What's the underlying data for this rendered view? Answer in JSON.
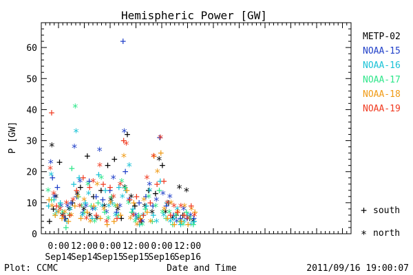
{
  "chart_data": {
    "type": "scatter",
    "title": "Hemispheric Power [GW]",
    "ylabel": "P [GW]",
    "xlabel": "Date and Time",
    "ylim": [
      0,
      68
    ],
    "yticks": [
      0,
      10,
      20,
      30,
      40,
      50,
      60
    ],
    "xlim": [
      -8,
      136
    ],
    "xunit": "hours after 2011-09-14 00:00",
    "xticks": [
      {
        "x": 0,
        "time": "0:00",
        "date": "Sep14"
      },
      {
        "x": 12,
        "time": "12:00",
        "date": "Sep14"
      },
      {
        "x": 24,
        "time": "0:00",
        "date": "Sep15"
      },
      {
        "x": 36,
        "time": "12:00",
        "date": "Sep15"
      },
      {
        "x": 48,
        "time": "0:00",
        "date": "Sep16"
      },
      {
        "x": 60,
        "time": "12:00",
        "date": "Sep16"
      }
    ],
    "series": [
      {
        "name": "METP-02",
        "color": "#000000",
        "points": [
          [
            -4.2,
            4
          ],
          [
            -3.1,
            28.5
          ],
          [
            -2.4,
            8
          ],
          [
            -1.2,
            12
          ],
          [
            0.5,
            23
          ],
          [
            1.8,
            6
          ],
          [
            3.2,
            5
          ],
          [
            4.9,
            8
          ],
          [
            6.5,
            10
          ],
          [
            8.7,
            13
          ],
          [
            10.2,
            15
          ],
          [
            11.8,
            8
          ],
          [
            13.4,
            25
          ],
          [
            14.6,
            6
          ],
          [
            16.3,
            12
          ],
          [
            17.9,
            5
          ],
          [
            19.8,
            14
          ],
          [
            21.3,
            9
          ],
          [
            22.9,
            22
          ],
          [
            24.4,
            11
          ],
          [
            26.0,
            24
          ],
          [
            27.6,
            8
          ],
          [
            29.2,
            5
          ],
          [
            30.8,
            15
          ],
          [
            32.0,
            32
          ],
          [
            33.8,
            12
          ],
          [
            35.5,
            9
          ],
          [
            37.2,
            5
          ],
          [
            38.5,
            4
          ],
          [
            40.1,
            9
          ],
          [
            41.9,
            14
          ],
          [
            43.5,
            7
          ],
          [
            45.1,
            13
          ],
          [
            46.8,
            24
          ],
          [
            48.3,
            22
          ],
          [
            49.7,
            7
          ],
          [
            51.2,
            10
          ],
          [
            53.0,
            5
          ],
          [
            54.7,
            6
          ],
          [
            56.2,
            15
          ],
          [
            57.8,
            6
          ],
          [
            59.5,
            14
          ],
          [
            61.0,
            5
          ],
          [
            62.6,
            4
          ]
        ]
      },
      {
        "name": "NOAA-15",
        "color": "#1f3fc8",
        "points": [
          [
            -3.6,
            23
          ],
          [
            -2.8,
            18
          ],
          [
            -1.9,
            12
          ],
          [
            -0.5,
            15
          ],
          [
            1.2,
            9
          ],
          [
            2.7,
            5
          ],
          [
            4.2,
            9
          ],
          [
            5.8,
            10
          ],
          [
            7.4,
            28
          ],
          [
            8.5,
            12
          ],
          [
            10.0,
            17
          ],
          [
            11.4,
            7
          ],
          [
            12.8,
            9
          ],
          [
            14.3,
            17
          ],
          [
            15.9,
            8
          ],
          [
            17.5,
            12
          ],
          [
            19.1,
            27
          ],
          [
            20.6,
            11
          ],
          [
            22.3,
            7
          ],
          [
            23.9,
            14
          ],
          [
            25.5,
            18
          ],
          [
            27.0,
            7
          ],
          [
            28.5,
            9
          ],
          [
            30.0,
            62
          ],
          [
            30.6,
            33
          ],
          [
            31.1,
            20
          ],
          [
            32.8,
            11
          ],
          [
            34.2,
            7
          ],
          [
            35.9,
            6
          ],
          [
            37.5,
            10
          ],
          [
            39.0,
            4
          ],
          [
            40.6,
            12
          ],
          [
            42.3,
            16
          ],
          [
            43.9,
            9
          ],
          [
            45.5,
            11
          ],
          [
            47.1,
            31
          ],
          [
            48.6,
            13
          ],
          [
            50.1,
            9
          ],
          [
            51.8,
            12
          ],
          [
            53.4,
            6
          ],
          [
            55.0,
            4
          ],
          [
            56.7,
            5
          ],
          [
            58.2,
            8
          ],
          [
            59.8,
            5
          ],
          [
            61.4,
            6
          ],
          [
            62.9,
            5
          ]
        ]
      },
      {
        "name": "NOAA-16",
        "color": "#19c2d6",
        "points": [
          [
            -4.6,
            9
          ],
          [
            -3.4,
            19
          ],
          [
            -2.1,
            11
          ],
          [
            -0.8,
            7
          ],
          [
            0.9,
            10
          ],
          [
            2.4,
            6
          ],
          [
            3.9,
            4
          ],
          [
            5.5,
            8
          ],
          [
            7.1,
            16
          ],
          [
            8.2,
            33
          ],
          [
            9.6,
            18
          ],
          [
            11.0,
            6
          ],
          [
            12.5,
            10
          ],
          [
            14.0,
            13
          ],
          [
            15.6,
            5
          ],
          [
            17.1,
            8
          ],
          [
            18.7,
            19
          ],
          [
            20.3,
            9
          ],
          [
            21.8,
            14
          ],
          [
            23.4,
            9
          ],
          [
            25.0,
            10
          ],
          [
            26.5,
            6
          ],
          [
            28.1,
            15
          ],
          [
            29.7,
            12
          ],
          [
            31.3,
            14
          ],
          [
            32.9,
            22
          ],
          [
            34.6,
            8
          ],
          [
            36.1,
            5
          ],
          [
            37.7,
            3
          ],
          [
            39.3,
            6
          ],
          [
            40.8,
            9
          ],
          [
            42.4,
            14
          ],
          [
            44.1,
            6
          ],
          [
            45.6,
            4
          ],
          [
            47.3,
            17
          ],
          [
            48.9,
            6
          ],
          [
            50.4,
            10
          ],
          [
            52.0,
            4
          ],
          [
            53.6,
            5
          ],
          [
            55.2,
            8
          ],
          [
            56.8,
            3
          ],
          [
            58.4,
            4
          ],
          [
            60.0,
            6
          ],
          [
            61.6,
            3
          ],
          [
            63.1,
            4
          ]
        ]
      },
      {
        "name": "NOAA-17",
        "color": "#2ee68a",
        "points": [
          [
            -4.8,
            14
          ],
          [
            -3.3,
            11
          ],
          [
            -1.6,
            6
          ],
          [
            0.2,
            9
          ],
          [
            1.9,
            7
          ],
          [
            3.5,
            2
          ],
          [
            5.0,
            6
          ],
          [
            6.2,
            21
          ],
          [
            7.8,
            41
          ],
          [
            9.2,
            12
          ],
          [
            10.7,
            9
          ],
          [
            12.2,
            7
          ],
          [
            13.7,
            16
          ],
          [
            15.2,
            9
          ],
          [
            16.8,
            4
          ],
          [
            18.4,
            10
          ],
          [
            19.9,
            18
          ],
          [
            21.5,
            7
          ],
          [
            23.1,
            5
          ],
          [
            24.7,
            12
          ],
          [
            26.3,
            9
          ],
          [
            27.9,
            6
          ],
          [
            29.4,
            17
          ],
          [
            31.0,
            15
          ],
          [
            32.6,
            10
          ],
          [
            34.1,
            7
          ],
          [
            35.7,
            4
          ],
          [
            37.3,
            6
          ],
          [
            38.9,
            3
          ],
          [
            40.4,
            8
          ],
          [
            42.0,
            12
          ],
          [
            43.6,
            4
          ],
          [
            45.2,
            9
          ],
          [
            46.9,
            14
          ],
          [
            48.4,
            7
          ],
          [
            50.0,
            5
          ],
          [
            51.5,
            7
          ],
          [
            53.1,
            3
          ],
          [
            54.8,
            6
          ],
          [
            56.4,
            4
          ],
          [
            57.9,
            3
          ],
          [
            59.5,
            7
          ],
          [
            61.1,
            5
          ],
          [
            62.7,
            3
          ]
        ]
      },
      {
        "name": "NOAA-18",
        "color": "#f09a14",
        "points": [
          [
            -4.4,
            11
          ],
          [
            -3.0,
            9
          ],
          [
            -1.5,
            6
          ],
          [
            0.0,
            7
          ],
          [
            1.6,
            5
          ],
          [
            3.0,
            7
          ],
          [
            4.6,
            4
          ],
          [
            6.0,
            6
          ],
          [
            7.6,
            9
          ],
          [
            9.0,
            12
          ],
          [
            10.4,
            5
          ],
          [
            11.9,
            11
          ],
          [
            13.3,
            7
          ],
          [
            14.8,
            4
          ],
          [
            16.4,
            9
          ],
          [
            18.0,
            16
          ],
          [
            19.5,
            5
          ],
          [
            21.1,
            8
          ],
          [
            22.6,
            3
          ],
          [
            24.2,
            10
          ],
          [
            25.8,
            4
          ],
          [
            27.3,
            9
          ],
          [
            28.9,
            6
          ],
          [
            30.4,
            25
          ],
          [
            31.8,
            14
          ],
          [
            33.4,
            5
          ],
          [
            35.0,
            10
          ],
          [
            36.5,
            3
          ],
          [
            38.1,
            5
          ],
          [
            39.7,
            11
          ],
          [
            41.2,
            7
          ],
          [
            42.8,
            4
          ],
          [
            44.4,
            25
          ],
          [
            46.0,
            20
          ],
          [
            47.6,
            26
          ],
          [
            49.2,
            8
          ],
          [
            50.7,
            5
          ],
          [
            52.3,
            10
          ],
          [
            53.9,
            3
          ],
          [
            55.5,
            7
          ],
          [
            57.1,
            4
          ],
          [
            58.6,
            9
          ],
          [
            60.2,
            3
          ],
          [
            61.8,
            8
          ],
          [
            63.4,
            7
          ]
        ]
      },
      {
        "name": "NOAA-19",
        "color": "#f0391f",
        "points": [
          [
            -3.8,
            21
          ],
          [
            -3.2,
            39
          ],
          [
            -2.2,
            13
          ],
          [
            -0.9,
            9
          ],
          [
            0.7,
            8
          ],
          [
            2.2,
            6
          ],
          [
            3.7,
            10
          ],
          [
            5.3,
            6
          ],
          [
            6.8,
            11
          ],
          [
            8.4,
            14
          ],
          [
            9.9,
            9
          ],
          [
            11.5,
            18
          ],
          [
            13.0,
            5
          ],
          [
            14.5,
            15
          ],
          [
            16.1,
            17
          ],
          [
            17.6,
            6
          ],
          [
            19.2,
            22
          ],
          [
            20.8,
            16
          ],
          [
            22.4,
            4
          ],
          [
            24.0,
            15
          ],
          [
            25.6,
            12
          ],
          [
            27.2,
            5
          ],
          [
            28.7,
            16
          ],
          [
            30.3,
            30
          ],
          [
            31.5,
            29
          ],
          [
            33.1,
            11
          ],
          [
            34.7,
            6
          ],
          [
            36.3,
            12
          ],
          [
            37.9,
            4
          ],
          [
            39.5,
            6
          ],
          [
            41.1,
            18
          ],
          [
            42.7,
            10
          ],
          [
            44.2,
            25
          ],
          [
            45.8,
            16
          ],
          [
            47.4,
            31
          ],
          [
            49.0,
            17
          ],
          [
            50.6,
            10
          ],
          [
            52.1,
            6
          ],
          [
            53.7,
            9
          ],
          [
            55.3,
            7
          ],
          [
            56.9,
            9
          ],
          [
            58.5,
            6
          ],
          [
            60.1,
            5
          ],
          [
            61.7,
            9
          ],
          [
            63.2,
            6
          ]
        ]
      }
    ],
    "markers": [
      {
        "symbol": "+",
        "label": "south"
      },
      {
        "symbol": "*",
        "label": "north"
      }
    ]
  },
  "footer": {
    "left": "Plot: CCMC",
    "right": "2011/09/16 19:00:07"
  }
}
